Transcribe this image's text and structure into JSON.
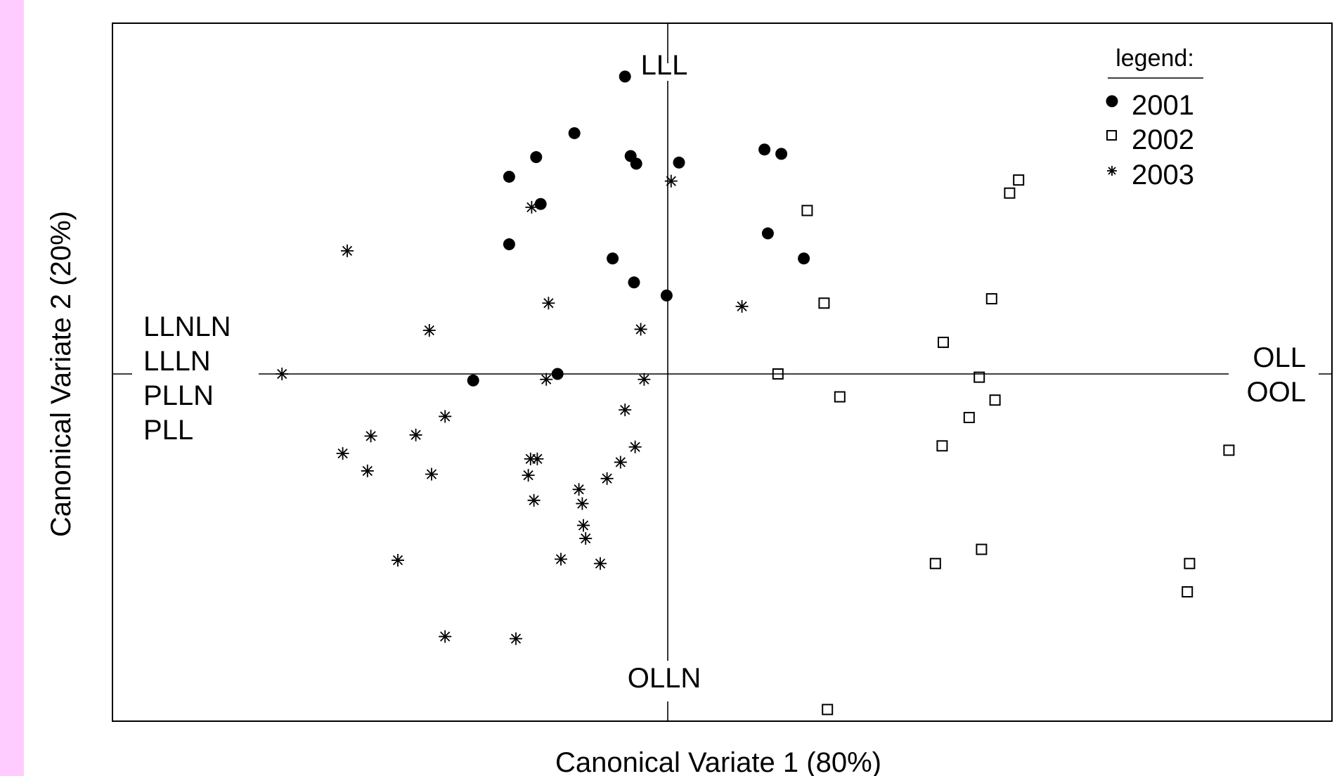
{
  "chart_data": {
    "type": "scatter",
    "title": "",
    "xlabel": "Canonical Variate 1 (80%)",
    "ylabel": "Canonical Variate 2 (20%)",
    "xlim": [
      -5.0,
      6.1
    ],
    "ylim": [
      -4.2,
      4.2
    ],
    "grid": false,
    "axes_origin_lines": true,
    "legend": {
      "title": "legend:",
      "position": "top-right"
    },
    "pole_labels": {
      "top": [
        "LLL"
      ],
      "bottom": [
        "OLLN"
      ],
      "left": [
        "LLNLN",
        "LLLN",
        "PLLN",
        "PLL"
      ],
      "right": [
        "OLL",
        "OOL"
      ]
    },
    "series": [
      {
        "name": "2001",
        "marker": "filled-circle",
        "color": "#000000",
        "points": [
          [
            -0.38,
            2.73
          ],
          [
            -0.83,
            2.21
          ],
          [
            -0.33,
            2.0
          ],
          [
            -0.28,
            1.93
          ],
          [
            0.1,
            1.94
          ],
          [
            -1.17,
            1.99
          ],
          [
            -1.41,
            1.81
          ],
          [
            -1.13,
            1.56
          ],
          [
            -1.41,
            1.19
          ],
          [
            -0.49,
            1.06
          ],
          [
            -0.3,
            0.84
          ],
          [
            -0.01,
            0.72
          ],
          [
            0.86,
            2.06
          ],
          [
            1.01,
            2.02
          ],
          [
            0.89,
            1.29
          ],
          [
            1.21,
            1.06
          ],
          [
            -1.73,
            -0.06
          ],
          [
            -0.98,
            0.0
          ]
        ]
      },
      {
        "name": "2002",
        "marker": "open-square",
        "color": "#000000",
        "points": [
          [
            3.12,
            1.78
          ],
          [
            3.04,
            1.66
          ],
          [
            1.24,
            1.5
          ],
          [
            1.39,
            0.65
          ],
          [
            2.88,
            0.69
          ],
          [
            2.45,
            0.29
          ],
          [
            0.98,
            0.0
          ],
          [
            2.77,
            -0.03
          ],
          [
            1.53,
            -0.21
          ],
          [
            2.91,
            -0.24
          ],
          [
            2.68,
            -0.4
          ],
          [
            2.44,
            -0.66
          ],
          [
            4.99,
            -0.7
          ],
          [
            2.38,
            -1.74
          ],
          [
            2.79,
            -1.61
          ],
          [
            4.64,
            -1.74
          ],
          [
            4.62,
            -2.0
          ],
          [
            1.42,
            -3.08
          ]
        ]
      },
      {
        "name": "2003",
        "marker": "asterisk",
        "color": "#000000",
        "points": [
          [
            0.03,
            1.77
          ],
          [
            -1.21,
            1.53
          ],
          [
            -2.85,
            1.13
          ],
          [
            -3.43,
            0.0
          ],
          [
            -1.06,
            0.65
          ],
          [
            -2.12,
            0.4
          ],
          [
            -0.24,
            0.41
          ],
          [
            0.66,
            0.62
          ],
          [
            -1.08,
            -0.05
          ],
          [
            -0.21,
            -0.05
          ],
          [
            -0.38,
            -0.33
          ],
          [
            -1.98,
            -0.39
          ],
          [
            -2.24,
            -0.56
          ],
          [
            -2.64,
            -0.57
          ],
          [
            -2.89,
            -0.73
          ],
          [
            -2.67,
            -0.89
          ],
          [
            -2.1,
            -0.92
          ],
          [
            -1.22,
            -0.78
          ],
          [
            -1.16,
            -0.78
          ],
          [
            -1.24,
            -0.93
          ],
          [
            -0.29,
            -0.67
          ],
          [
            -0.42,
            -0.81
          ],
          [
            -0.54,
            -0.96
          ],
          [
            -0.79,
            -1.06
          ],
          [
            -0.76,
            -1.19
          ],
          [
            -1.19,
            -1.16
          ],
          [
            -0.75,
            -1.39
          ],
          [
            -0.73,
            -1.51
          ],
          [
            -0.95,
            -1.7
          ],
          [
            -0.6,
            -1.74
          ],
          [
            -2.4,
            -1.71
          ],
          [
            -1.35,
            -2.43
          ],
          [
            -1.98,
            -2.41
          ]
        ]
      }
    ]
  }
}
